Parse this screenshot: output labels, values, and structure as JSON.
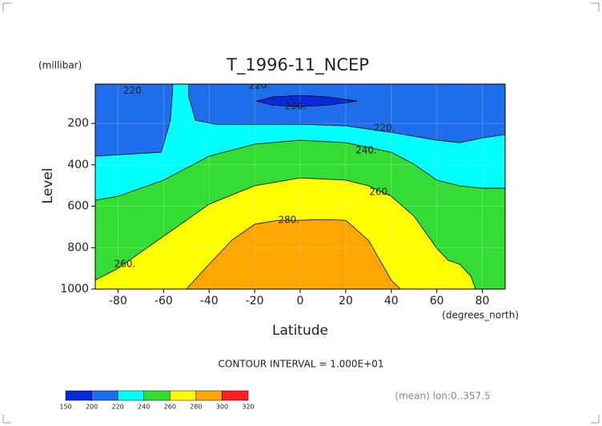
{
  "chart_data": {
    "type": "contour",
    "title": "T_1996-11_NCEP",
    "y_unit": "(millibar)",
    "x_unit": "(degrees_north)",
    "xlabel": "Latitude",
    "ylabel": "Level",
    "note": "CONTOUR INTERVAL = 1.000E+01",
    "footer": "(mean) lon:0..357.5",
    "xlim": [
      -90,
      90
    ],
    "xticks": [
      -80,
      -60,
      -40,
      -20,
      0,
      20,
      40,
      60,
      80
    ],
    "ylim": [
      1000,
      10
    ],
    "yticks": [
      200,
      400,
      600,
      800,
      1000
    ],
    "grid": true,
    "background": "#1e6eeb",
    "bands": [
      {
        "color": "#00ffff",
        "lat": [
          -90,
          -61,
          -57,
          -56,
          -56,
          -49,
          -49,
          -46,
          -37,
          0,
          20,
          40,
          60,
          70,
          80,
          90,
          90,
          -90
        ],
        "p": [
          358,
          339,
          185,
          30,
          10,
          10,
          69,
          185,
          204,
          204,
          212,
          243,
          281,
          293,
          270,
          254,
          1000,
          1000
        ]
      },
      {
        "color": "#33dd33",
        "lat": [
          -90,
          -80,
          -60,
          -40,
          -20,
          0,
          20,
          40,
          50,
          60,
          70,
          80,
          90,
          90,
          -90
        ],
        "p": [
          571,
          552,
          474,
          358,
          300,
          281,
          293,
          339,
          397,
          474,
          501,
          513,
          513,
          1000,
          1000
        ]
      },
      {
        "color": "#ffff00",
        "lat": [
          -90,
          -80,
          -70,
          -60,
          -50,
          -40,
          -20,
          0,
          20,
          30,
          40,
          50,
          60,
          65,
          70,
          75,
          77,
          -90
        ],
        "p": [
          957,
          900,
          822,
          745,
          668,
          590,
          501,
          463,
          474,
          501,
          552,
          648,
          803,
          861,
          880,
          938,
          1000,
          1000
        ]
      },
      {
        "color": "#ffa500",
        "lat": [
          -50,
          -40,
          -30,
          -20,
          -10,
          0,
          10,
          20,
          30,
          40,
          44
        ],
        "p": [
          1000,
          880,
          764,
          687,
          668,
          668,
          664,
          668,
          764,
          957,
          1000
        ]
      },
      {
        "color": "#0a28dc",
        "lat": [
          -19,
          -12,
          0,
          12,
          25,
          12,
          0,
          -12
        ],
        "p": [
          92,
          72,
          65,
          72,
          92,
          112,
          119,
          112
        ]
      }
    ],
    "annotations": [
      {
        "text": "220.",
        "lat": -73,
        "p": 43
      },
      {
        "text": "220.",
        "lat": -18,
        "p": 18
      },
      {
        "text": "200.",
        "lat": -2,
        "p": 119
      },
      {
        "text": "220.",
        "lat": 37,
        "p": 223
      },
      {
        "text": "240.",
        "lat": 29,
        "p": 331
      },
      {
        "text": "260.",
        "lat": 35,
        "p": 532
      },
      {
        "text": "280.",
        "lat": -5,
        "p": 668
      },
      {
        "text": "260.",
        "lat": -77,
        "p": 880
      }
    ],
    "levels": [
      150,
      200,
      220,
      240,
      260,
      280,
      300,
      320
    ],
    "level_colors": [
      "#0a28dc",
      "#1e6eeb",
      "#00ffff",
      "#33dd33",
      "#ffff00",
      "#ffa500",
      "#ff2020"
    ]
  }
}
